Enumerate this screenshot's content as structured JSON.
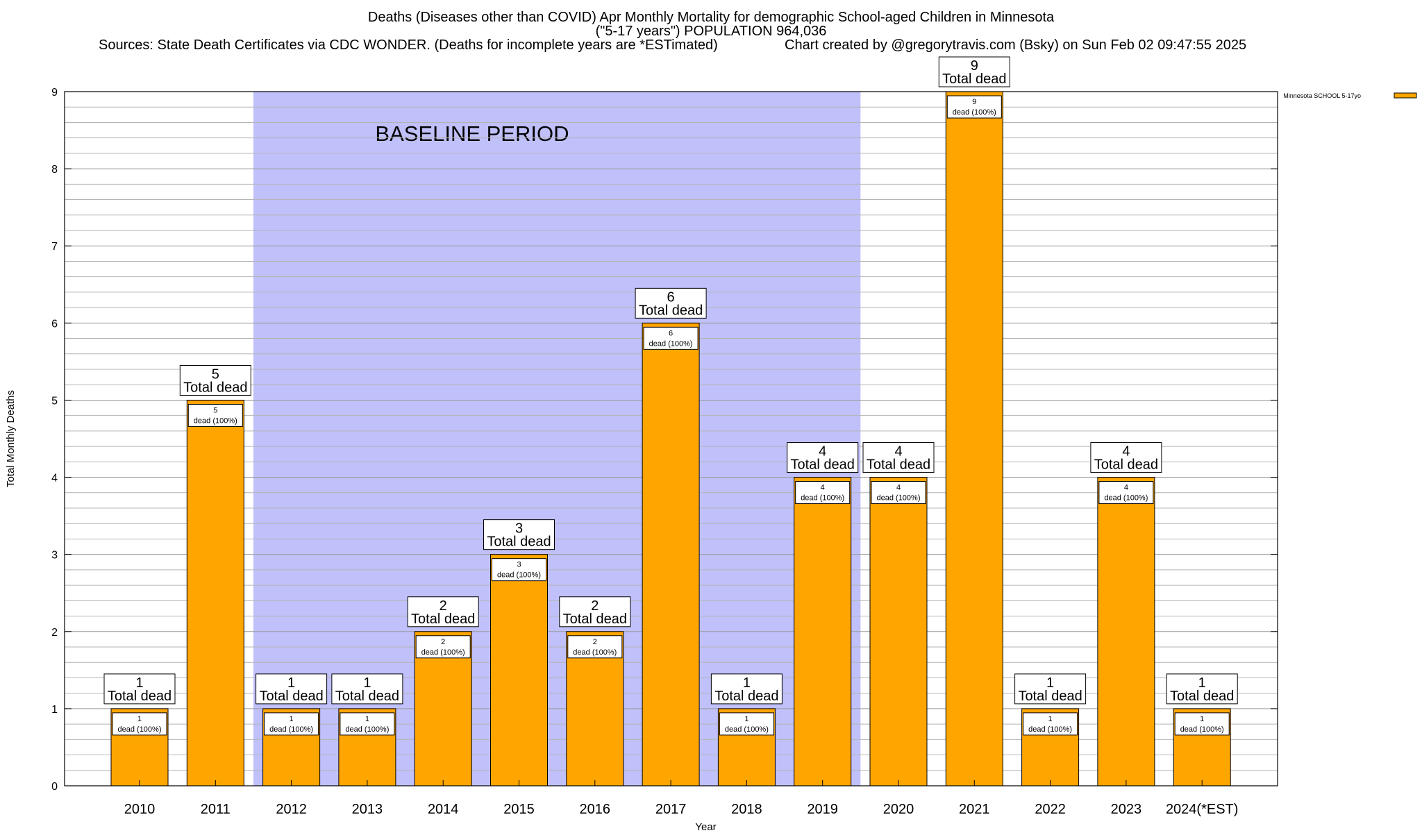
{
  "header": {
    "title_line1": "Deaths (Diseases other than COVID) Apr Monthly Mortality for demographic School-aged Children in Minnesota",
    "title_line2": "(\"5-17 years\") POPULATION 964,036",
    "sources": "Sources: State Death Certificates via CDC WONDER. (Deaths for incomplete years are *ESTimated)",
    "credit": "Chart created by @gregorytravis.com (Bsky) on Sun Feb 02 09:47:55 2025"
  },
  "chart_data": {
    "type": "bar",
    "xlabel": "Year",
    "ylabel": "Total Monthly Deaths",
    "ylim": [
      0,
      9
    ],
    "yticks": [
      0,
      1,
      2,
      3,
      4,
      5,
      6,
      7,
      8,
      9
    ],
    "categories": [
      "2010",
      "2011",
      "2012",
      "2013",
      "2014",
      "2015",
      "2016",
      "2017",
      "2018",
      "2019",
      "2020",
      "2021",
      "2022",
      "2023",
      "2024(*EST)"
    ],
    "series": [
      {
        "name": "Minnesota SCHOOL 5-17yo",
        "values": [
          1,
          5,
          1,
          1,
          2,
          3,
          2,
          6,
          1,
          4,
          4,
          9,
          1,
          4,
          1
        ]
      }
    ],
    "total_label": "Total dead",
    "segment_label": "dead (100%)",
    "baseline": {
      "label": "BASELINE PERIOD",
      "start": "2012",
      "end": "2019"
    },
    "legend_position": "top-right",
    "grid": true,
    "colors": {
      "bar": "#FFA500",
      "baseline_band": "#C0C0FA"
    }
  }
}
